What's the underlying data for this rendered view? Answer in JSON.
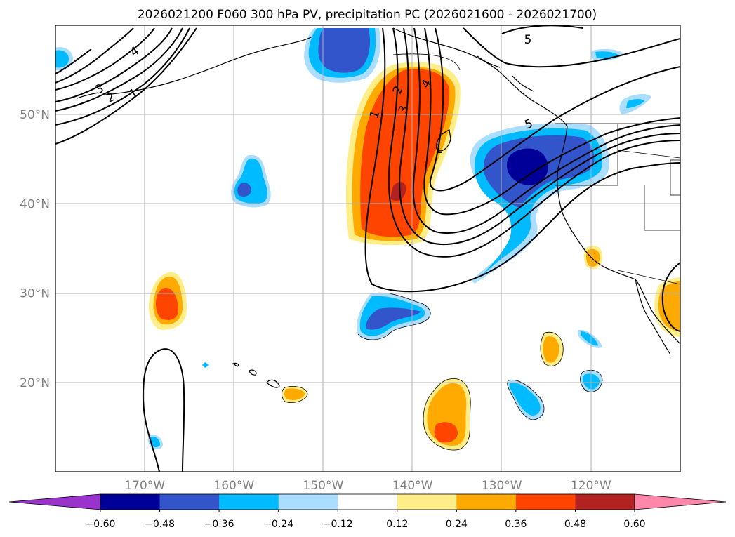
{
  "chart_data": {
    "type": "map",
    "title": "2026021200 F060 300 hPa PV, precipitation PC (2026021600 - 2026021700)",
    "projection": "lat-lon",
    "lon_range": [
      -180,
      -110
    ],
    "lat_range": [
      10,
      60
    ],
    "lon_ticks": [
      {
        "value": -170,
        "label": "170°W"
      },
      {
        "value": -160,
        "label": "160°W"
      },
      {
        "value": -150,
        "label": "150°W"
      },
      {
        "value": -140,
        "label": "140°W"
      },
      {
        "value": -130,
        "label": "130°W"
      },
      {
        "value": -120,
        "label": "120°W"
      }
    ],
    "lat_ticks": [
      {
        "value": 20,
        "label": "20°N"
      },
      {
        "value": 30,
        "label": "30°N"
      },
      {
        "value": 40,
        "label": "40°N"
      },
      {
        "value": 50,
        "label": "50°N"
      }
    ],
    "colorbar": {
      "bounds": [
        -0.6,
        -0.48,
        -0.36,
        -0.24,
        -0.12,
        0.12,
        0.24,
        0.36,
        0.48,
        0.6
      ],
      "tick_labels": [
        "−0.60",
        "−0.48",
        "−0.36",
        "−0.24",
        "−0.12",
        "0.12",
        "0.24",
        "0.36",
        "0.48",
        "0.60"
      ],
      "colors": [
        "#9933cc",
        "#000099",
        "#3355cc",
        "#00bbff",
        "#aaddff",
        "#ffffff",
        "#ffee88",
        "#ffaa00",
        "#ff4400",
        "#b22222",
        "#ff88aa"
      ],
      "extend": "both"
    },
    "pv_contour_labels": [
      "1",
      "2",
      "3",
      "4",
      "5"
    ],
    "precip_anomalies": [
      {
        "name": "offshore-positive-band",
        "lon": -143,
        "lat": 45,
        "peak": 0.48
      },
      {
        "name": "pacific-nw-negative",
        "lon": -126,
        "lat": 44,
        "peak": -0.6
      },
      {
        "name": "gulf-of-alaska-negative",
        "lon": -147,
        "lat": 57,
        "peak": -0.48
      },
      {
        "name": "west-pacific-positive",
        "lon": -167,
        "lat": 29,
        "peak": 0.36
      },
      {
        "name": "subtropical-negative",
        "lon": -143,
        "lat": 27,
        "peak": -0.48
      },
      {
        "name": "south-positive",
        "lon": -136,
        "lat": 15,
        "peak": 0.36
      },
      {
        "name": "baja-positive",
        "lon": -112,
        "lat": 29,
        "peak": 0.24
      }
    ]
  }
}
